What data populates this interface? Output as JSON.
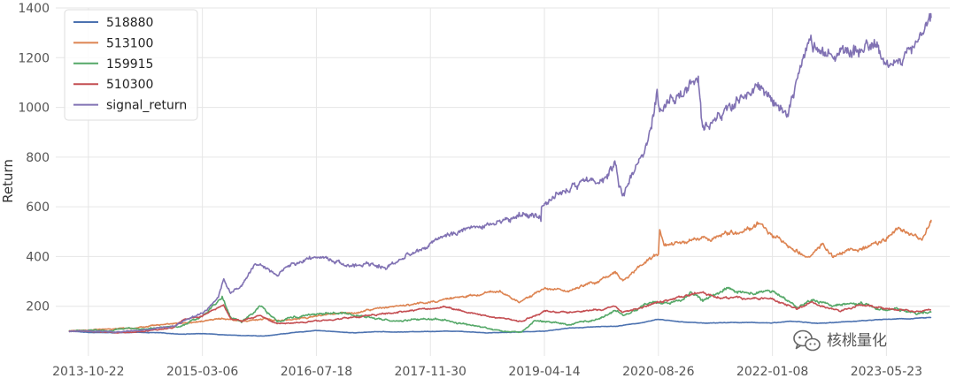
{
  "chart_data": {
    "type": "line",
    "ylabel": "Return",
    "xlabel": "",
    "ylim": [
      0,
      1400
    ],
    "yticks": [
      200,
      400,
      600,
      800,
      1000,
      1200,
      1400
    ],
    "xlim": [
      "2013-06-01",
      "2024-02-25"
    ],
    "xticks": [
      "2013-10-22",
      "2015-03-06",
      "2016-07-18",
      "2017-11-30",
      "2019-04-14",
      "2020-08-26",
      "2022-01-08",
      "2023-05-23"
    ],
    "grid": true,
    "legend_position": "top-left",
    "series": [
      {
        "name": "518880",
        "color": "#4c72b0",
        "points": [
          [
            "2013-07-29",
            100
          ],
          [
            "2013-10-22",
            95
          ],
          [
            "2014-03-01",
            93
          ],
          [
            "2014-06-01",
            95
          ],
          [
            "2014-09-01",
            93
          ],
          [
            "2014-12-01",
            88
          ],
          [
            "2015-03-06",
            90
          ],
          [
            "2015-06-01",
            86
          ],
          [
            "2015-09-01",
            82
          ],
          [
            "2015-12-01",
            80
          ],
          [
            "2016-03-01",
            90
          ],
          [
            "2016-07-18",
            103
          ],
          [
            "2016-10-01",
            98
          ],
          [
            "2017-01-01",
            93
          ],
          [
            "2017-04-01",
            98
          ],
          [
            "2017-07-01",
            96
          ],
          [
            "2017-11-30",
            99
          ],
          [
            "2018-04-01",
            100
          ],
          [
            "2018-08-01",
            93
          ],
          [
            "2018-12-01",
            96
          ],
          [
            "2019-04-14",
            100
          ],
          [
            "2019-08-01",
            112
          ],
          [
            "2019-12-01",
            118
          ],
          [
            "2020-03-01",
            120
          ],
          [
            "2020-06-01",
            132
          ],
          [
            "2020-08-26",
            148
          ],
          [
            "2020-12-01",
            137
          ],
          [
            "2021-04-01",
            132
          ],
          [
            "2021-08-01",
            135
          ],
          [
            "2022-01-08",
            133
          ],
          [
            "2022-04-01",
            140
          ],
          [
            "2022-08-01",
            131
          ],
          [
            "2022-12-01",
            138
          ],
          [
            "2023-05-23",
            148
          ],
          [
            "2023-09-01",
            150
          ],
          [
            "2023-12-05",
            156
          ]
        ]
      },
      {
        "name": "513100",
        "color": "#dd8452",
        "points": [
          [
            "2013-07-29",
            100
          ],
          [
            "2013-10-22",
            105
          ],
          [
            "2014-03-01",
            108
          ],
          [
            "2014-06-01",
            115
          ],
          [
            "2014-09-01",
            125
          ],
          [
            "2014-12-01",
            130
          ],
          [
            "2015-03-06",
            140
          ],
          [
            "2015-06-01",
            152
          ],
          [
            "2015-08-25",
            138
          ],
          [
            "2015-12-01",
            150
          ],
          [
            "2016-02-11",
            140
          ],
          [
            "2016-07-18",
            160
          ],
          [
            "2016-10-01",
            168
          ],
          [
            "2017-01-01",
            175
          ],
          [
            "2017-04-01",
            190
          ],
          [
            "2017-07-01",
            200
          ],
          [
            "2017-11-30",
            215
          ],
          [
            "2018-03-01",
            230
          ],
          [
            "2018-06-01",
            245
          ],
          [
            "2018-10-01",
            260
          ],
          [
            "2018-12-25",
            215
          ],
          [
            "2019-04-14",
            270
          ],
          [
            "2019-08-01",
            262
          ],
          [
            "2019-12-01",
            300
          ],
          [
            "2020-02-19",
            340
          ],
          [
            "2020-03-23",
            295
          ],
          [
            "2020-06-01",
            360
          ],
          [
            "2020-08-26",
            415
          ],
          [
            "2020-09-01",
            510
          ],
          [
            "2020-09-20",
            450
          ],
          [
            "2020-12-01",
            455
          ],
          [
            "2021-04-01",
            470
          ],
          [
            "2021-08-01",
            500
          ],
          [
            "2021-11-20",
            530
          ],
          [
            "2022-01-08",
            480
          ],
          [
            "2022-04-01",
            440
          ],
          [
            "2022-06-16",
            395
          ],
          [
            "2022-08-15",
            450
          ],
          [
            "2022-10-13",
            395
          ],
          [
            "2022-12-01",
            420
          ],
          [
            "2023-03-01",
            440
          ],
          [
            "2023-05-23",
            465
          ],
          [
            "2023-07-20",
            510
          ],
          [
            "2023-10-26",
            470
          ],
          [
            "2023-12-05",
            548
          ]
        ]
      },
      {
        "name": "159915",
        "color": "#55a868",
        "points": [
          [
            "2013-07-29",
            100
          ],
          [
            "2013-10-22",
            103
          ],
          [
            "2014-01-15",
            100
          ],
          [
            "2014-04-01",
            110
          ],
          [
            "2014-07-01",
            108
          ],
          [
            "2014-09-01",
            115
          ],
          [
            "2014-12-01",
            120
          ],
          [
            "2015-03-06",
            160
          ],
          [
            "2015-06-01",
            240
          ],
          [
            "2015-07-08",
            155
          ],
          [
            "2015-08-26",
            140
          ],
          [
            "2015-11-15",
            200
          ],
          [
            "2016-01-28",
            140
          ],
          [
            "2016-03-01",
            150
          ],
          [
            "2016-07-18",
            170
          ],
          [
            "2016-11-01",
            175
          ],
          [
            "2017-01-01",
            160
          ],
          [
            "2017-04-01",
            150
          ],
          [
            "2017-07-01",
            140
          ],
          [
            "2017-11-30",
            150
          ],
          [
            "2018-03-01",
            140
          ],
          [
            "2018-06-01",
            120
          ],
          [
            "2018-10-19",
            100
          ],
          [
            "2019-01-04",
            95
          ],
          [
            "2019-03-01",
            140
          ],
          [
            "2019-04-14",
            140
          ],
          [
            "2019-08-01",
            130
          ],
          [
            "2019-12-01",
            145
          ],
          [
            "2020-02-20",
            185
          ],
          [
            "2020-03-23",
            160
          ],
          [
            "2020-07-10",
            215
          ],
          [
            "2020-08-26",
            210
          ],
          [
            "2020-12-01",
            220
          ],
          [
            "2021-01-11",
            250
          ],
          [
            "2021-03-08",
            220
          ],
          [
            "2021-06-21",
            270
          ],
          [
            "2021-09-01",
            255
          ],
          [
            "2022-01-08",
            260
          ],
          [
            "2022-04-26",
            200
          ],
          [
            "2022-07-01",
            230
          ],
          [
            "2022-10-01",
            200
          ],
          [
            "2022-12-01",
            210
          ],
          [
            "2023-02-01",
            215
          ],
          [
            "2023-05-23",
            180
          ],
          [
            "2023-07-01",
            190
          ],
          [
            "2023-10-01",
            170
          ],
          [
            "2023-12-05",
            175
          ]
        ]
      },
      {
        "name": "510300",
        "color": "#c44e52",
        "points": [
          [
            "2013-07-29",
            100
          ],
          [
            "2013-10-22",
            100
          ],
          [
            "2014-03-01",
            93
          ],
          [
            "2014-07-01",
            100
          ],
          [
            "2014-11-01",
            115
          ],
          [
            "2014-12-10",
            145
          ],
          [
            "2015-03-06",
            160
          ],
          [
            "2015-06-08",
            205
          ],
          [
            "2015-07-08",
            150
          ],
          [
            "2015-08-26",
            140
          ],
          [
            "2015-11-15",
            165
          ],
          [
            "2016-01-28",
            130
          ],
          [
            "2016-07-18",
            140
          ],
          [
            "2016-11-01",
            150
          ],
          [
            "2017-04-01",
            165
          ],
          [
            "2017-07-01",
            175
          ],
          [
            "2017-11-30",
            190
          ],
          [
            "2018-01-24",
            200
          ],
          [
            "2018-06-01",
            170
          ],
          [
            "2018-10-19",
            150
          ],
          [
            "2019-01-04",
            140
          ],
          [
            "2019-04-14",
            180
          ],
          [
            "2019-08-01",
            175
          ],
          [
            "2019-12-01",
            185
          ],
          [
            "2020-02-20",
            200
          ],
          [
            "2020-03-23",
            175
          ],
          [
            "2020-07-10",
            205
          ],
          [
            "2020-08-26",
            215
          ],
          [
            "2021-02-18",
            255
          ],
          [
            "2021-06-01",
            235
          ],
          [
            "2022-01-08",
            230
          ],
          [
            "2022-04-26",
            190
          ],
          [
            "2022-07-01",
            215
          ],
          [
            "2022-10-31",
            180
          ],
          [
            "2023-01-28",
            205
          ],
          [
            "2023-05-23",
            190
          ],
          [
            "2023-10-01",
            180
          ],
          [
            "2023-12-05",
            185
          ]
        ]
      },
      {
        "name": "signal_return",
        "color": "#8172b3",
        "points": [
          [
            "2013-07-29",
            100
          ],
          [
            "2013-10-22",
            103
          ],
          [
            "2014-03-01",
            95
          ],
          [
            "2014-07-01",
            105
          ],
          [
            "2014-11-01",
            120
          ],
          [
            "2015-01-01",
            150
          ],
          [
            "2015-03-06",
            170
          ],
          [
            "2015-05-15",
            230
          ],
          [
            "2015-06-08",
            310
          ],
          [
            "2015-07-08",
            260
          ],
          [
            "2015-08-26",
            280
          ],
          [
            "2015-10-25",
            380
          ],
          [
            "2016-01-28",
            330
          ],
          [
            "2016-04-01",
            365
          ],
          [
            "2016-07-18",
            400
          ],
          [
            "2016-09-01",
            395
          ],
          [
            "2016-12-01",
            365
          ],
          [
            "2017-03-01",
            375
          ],
          [
            "2017-05-20",
            360
          ],
          [
            "2017-08-01",
            400
          ],
          [
            "2017-11-30",
            445
          ],
          [
            "2018-02-01",
            480
          ],
          [
            "2018-05-01",
            510
          ],
          [
            "2018-08-01",
            520
          ],
          [
            "2018-10-19",
            540
          ],
          [
            "2019-01-04",
            570
          ],
          [
            "2019-03-30",
            560
          ],
          [
            "2019-04-01",
            620
          ],
          [
            "2019-04-14",
            605
          ],
          [
            "2019-07-01",
            660
          ],
          [
            "2019-10-01",
            700
          ],
          [
            "2020-01-15",
            710
          ],
          [
            "2020-02-20",
            760
          ],
          [
            "2020-03-23",
            640
          ],
          [
            "2020-06-01",
            780
          ],
          [
            "2020-07-06",
            860
          ],
          [
            "2020-08-20",
            1060
          ],
          [
            "2020-09-01",
            980
          ],
          [
            "2020-10-15",
            1030
          ],
          [
            "2020-12-01",
            1040
          ],
          [
            "2021-02-18",
            1110
          ],
          [
            "2021-03-08",
            910
          ],
          [
            "2021-06-01",
            980
          ],
          [
            "2021-09-01",
            1040
          ],
          [
            "2021-11-15",
            1080
          ],
          [
            "2022-01-08",
            1030
          ],
          [
            "2022-03-15",
            960
          ],
          [
            "2022-05-01",
            1120
          ],
          [
            "2022-06-20",
            1270
          ],
          [
            "2022-09-01",
            1200
          ],
          [
            "2022-11-01",
            1230
          ],
          [
            "2023-01-01",
            1220
          ],
          [
            "2023-03-01",
            1250
          ],
          [
            "2023-05-23",
            1180
          ],
          [
            "2023-08-01",
            1170
          ],
          [
            "2023-09-10",
            1240
          ],
          [
            "2023-11-01",
            1300
          ],
          [
            "2023-12-05",
            1360
          ]
        ]
      }
    ]
  },
  "watermark": {
    "text": "核桃量化",
    "icon": "wechat-icon"
  }
}
